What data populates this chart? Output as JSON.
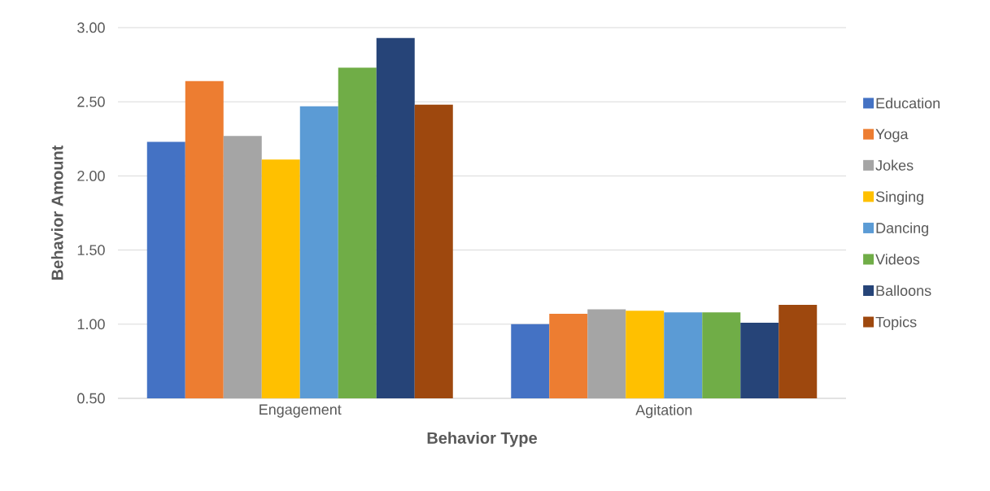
{
  "chart_data": {
    "type": "bar",
    "xlabel": "Behavior Type",
    "ylabel": "Behavior Amount",
    "categories": [
      "Engagement",
      "Agitation"
    ],
    "series": [
      {
        "name": "Education",
        "color": "#4472c4",
        "values": [
          2.23,
          1.0
        ]
      },
      {
        "name": "Yoga",
        "color": "#ed7d31",
        "values": [
          2.64,
          1.07
        ]
      },
      {
        "name": "Jokes",
        "color": "#a5a5a5",
        "values": [
          2.27,
          1.1
        ]
      },
      {
        "name": "Singing",
        "color": "#ffc000",
        "values": [
          2.11,
          1.09
        ]
      },
      {
        "name": "Dancing",
        "color": "#5b9bd5",
        "values": [
          2.47,
          1.08
        ]
      },
      {
        "name": "Videos",
        "color": "#70ad47",
        "values": [
          2.73,
          1.08
        ]
      },
      {
        "name": "Balloons",
        "color": "#264478",
        "values": [
          2.93,
          1.01
        ]
      },
      {
        "name": "Topics",
        "color": "#9e480e",
        "values": [
          2.48,
          1.13
        ]
      }
    ],
    "ylim": [
      0.5,
      3.0
    ],
    "yticks": [
      {
        "value": 0.5,
        "label": "0.50"
      },
      {
        "value": 1.0,
        "label": "1.00"
      },
      {
        "value": 1.5,
        "label": "1.50"
      },
      {
        "value": 2.0,
        "label": "2.00"
      },
      {
        "value": 2.5,
        "label": "2.50"
      },
      {
        "value": 3.0,
        "label": "3.00"
      }
    ],
    "grid": "y",
    "legend": "right"
  }
}
